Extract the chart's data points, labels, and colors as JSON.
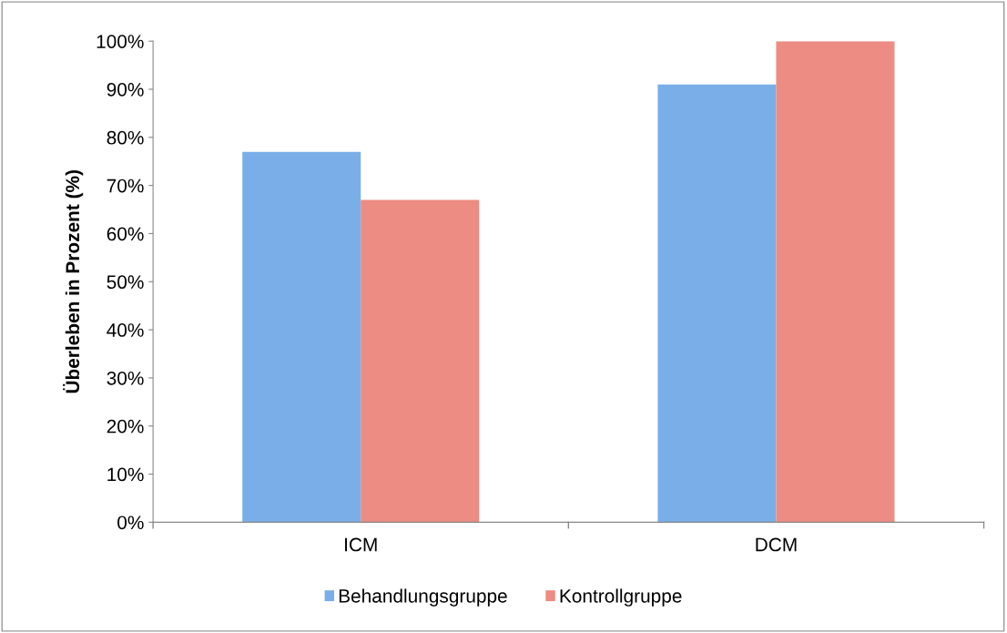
{
  "chart_data": {
    "type": "bar",
    "ylabel": "Überleben in Prozent (%)",
    "categories": [
      "ICM",
      "DCM"
    ],
    "series": [
      {
        "name": "Behandlungsgruppe",
        "color": "#7aaee8",
        "values": [
          77,
          91
        ]
      },
      {
        "name": "Kontrollgruppe",
        "color": "#ec8c82",
        "values": [
          67,
          100
        ]
      }
    ],
    "ylim": [
      0,
      100
    ],
    "yticks": [
      {
        "value": 0,
        "label": "0%"
      },
      {
        "value": 10,
        "label": "10%"
      },
      {
        "value": 20,
        "label": "20%"
      },
      {
        "value": 30,
        "label": "30%"
      },
      {
        "value": 40,
        "label": "40%"
      },
      {
        "value": 50,
        "label": "50%"
      },
      {
        "value": 60,
        "label": "60%"
      },
      {
        "value": 70,
        "label": "70%"
      },
      {
        "value": 80,
        "label": "80%"
      },
      {
        "value": 90,
        "label": "90%"
      },
      {
        "value": 100,
        "label": "100%"
      }
    ],
    "grid": false,
    "legend": "bottom"
  }
}
